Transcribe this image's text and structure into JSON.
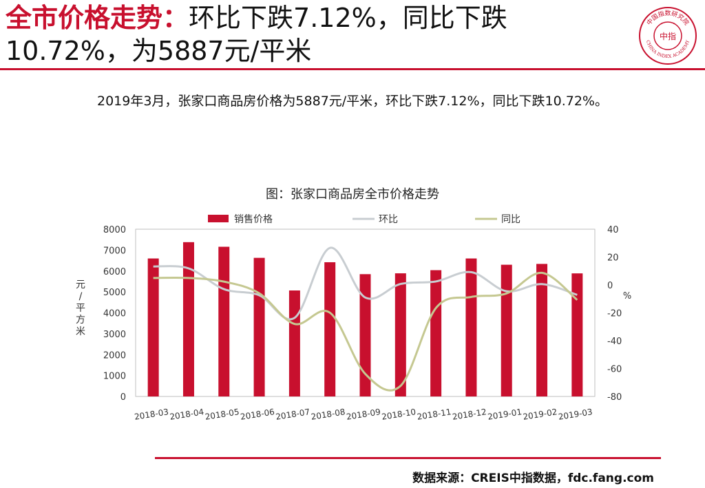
{
  "header": {
    "title_accent": "全市价格走势：",
    "title_rest": "环比下跌7.12%，同比下跌10.72%，为5887元/平米"
  },
  "logo": {
    "icon": "china-index-academy-seal-icon",
    "center_text": "中指",
    "ring_cn": "中国指数研究院",
    "ring_en": "CHINA INDEX ACADEMY",
    "color": "#c8102e"
  },
  "summary": "2019年3月，张家口商品房价格为5887元/平米，环比下跌7.12%，同比下跌10.72%。",
  "chart_title": "图：张家口商品房全市价格走势",
  "footer": {
    "source": "数据来源：CREIS中指数据，fdc.fang.com"
  },
  "chart_data": {
    "type": "bar",
    "categories": [
      "2018-03",
      "2018-04",
      "2018-05",
      "2018-06",
      "2018-07",
      "2018-08",
      "2018-09",
      "2018-10",
      "2018-11",
      "2018-12",
      "2019-01",
      "2019-02",
      "2019-03"
    ],
    "series": [
      {
        "name": "销售价格",
        "type": "bar",
        "axis": "left",
        "color": "#c8102e",
        "values": [
          6600,
          7380,
          7160,
          6630,
          5070,
          6420,
          5850,
          5890,
          6040,
          6600,
          6300,
          6340,
          5887
        ]
      },
      {
        "name": "环比",
        "type": "line",
        "axis": "right",
        "color": "#c8cdd1",
        "values": [
          13.3,
          11.9,
          -3.0,
          -7.4,
          -23.6,
          26.6,
          -9.0,
          0.7,
          2.5,
          9.2,
          -4.5,
          0.6,
          -7.12
        ]
      },
      {
        "name": "同比",
        "type": "line",
        "axis": "right",
        "color": "#c5c891",
        "values": [
          5.0,
          5.0,
          2.4,
          -6.0,
          -28.0,
          -19.9,
          -63.8,
          -72.4,
          -16.6,
          -8.6,
          -6.1,
          8.7,
          -10.72
        ]
      }
    ],
    "y_left": {
      "label": "元/平方米",
      "min": 0,
      "max": 8000,
      "ticks": [
        0,
        1000,
        2000,
        3000,
        4000,
        5000,
        6000,
        7000,
        8000
      ]
    },
    "y_right": {
      "label": "%",
      "min": -80,
      "max": 40,
      "ticks": [
        -80,
        -60,
        -40,
        -20,
        0,
        20,
        40
      ]
    },
    "legend": "top",
    "grid": false
  }
}
